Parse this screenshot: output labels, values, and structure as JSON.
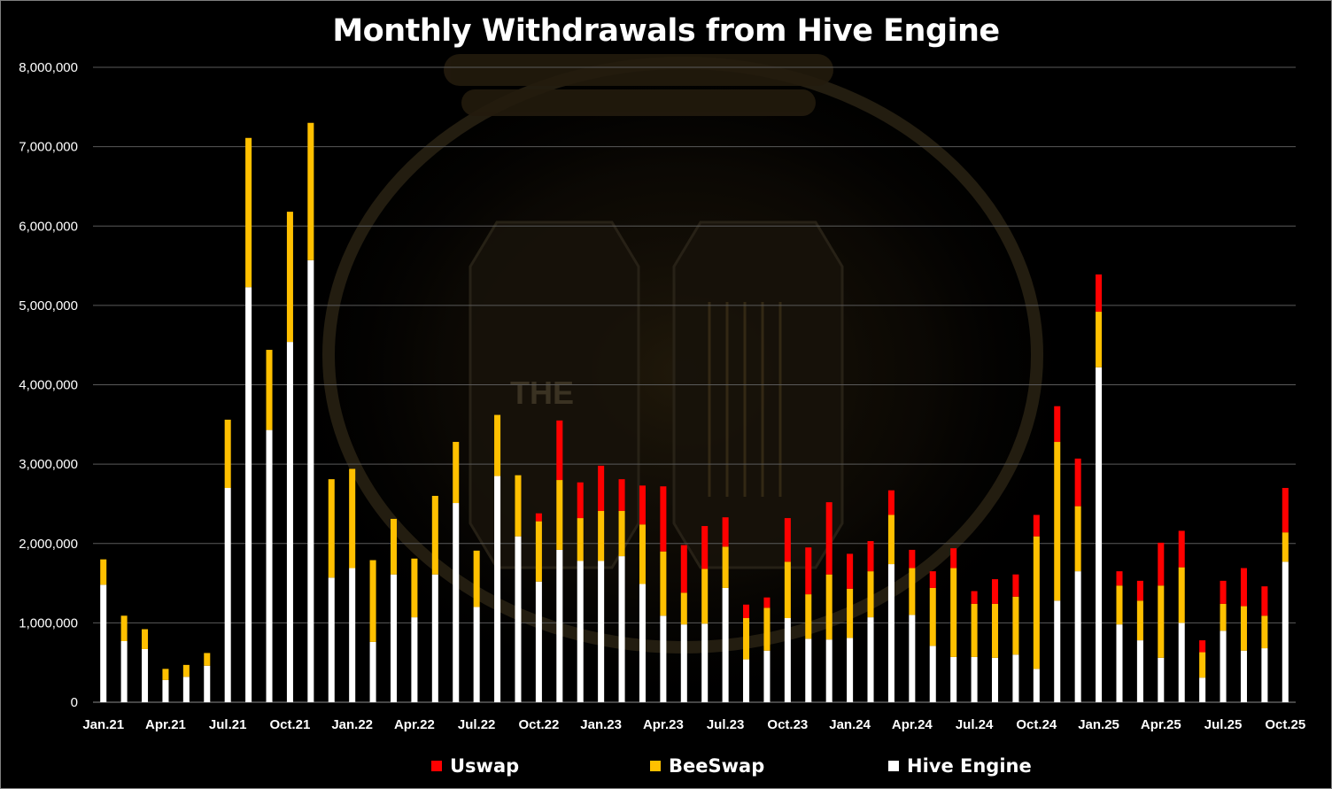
{
  "chart_data": {
    "type": "bar",
    "stacked": true,
    "title": "Monthly Withdrawals from Hive Engine",
    "xlabel": "",
    "ylabel": "",
    "ylim": [
      0,
      8000000
    ],
    "y_ticks": [
      "0",
      "1,000,000",
      "2,000,000",
      "3,000,000",
      "4,000,000",
      "5,000,000",
      "6,000,000",
      "7,000,000",
      "8,000,000"
    ],
    "y_tick_values": [
      0,
      1000000,
      2000000,
      3000000,
      4000000,
      5000000,
      6000000,
      7000000,
      8000000
    ],
    "grid": true,
    "legend_position": "bottom",
    "categories": [
      "Jan.21",
      "Feb.21",
      "Mar.21",
      "Apr.21",
      "May.21",
      "Jun.21",
      "Jul.21",
      "Aug.21",
      "Sep.21",
      "Oct.21",
      "Nov.21",
      "Dec.21",
      "Jan.22",
      "Feb.22",
      "Mar.22",
      "Apr.22",
      "May.22",
      "Jun.22",
      "Jul.22",
      "Aug.22",
      "Sep.22",
      "Oct.22",
      "Nov.22",
      "Dec.22",
      "Jan.23",
      "Feb.23",
      "Mar.23",
      "Apr.23",
      "May.23",
      "Jun.23",
      "Jul.23",
      "Aug.23",
      "Sep.23",
      "Oct.23",
      "Nov.23",
      "Dec.23",
      "Jan.24",
      "Feb.24",
      "Mar.24",
      "Apr.24",
      "May.24",
      "Jun.24",
      "Jul.24",
      "Aug.24",
      "Sep.24",
      "Oct.24",
      "Nov.24",
      "Dec.24",
      "Jan.25",
      "Feb.25",
      "Mar.25",
      "Apr.25",
      "May.25",
      "Jun.25",
      "Jul.25",
      "Aug.25",
      "Sep.25",
      "Oct.25"
    ],
    "x_tick_labels": [
      "Jan.21",
      "",
      "",
      "Apr.21",
      "",
      "",
      "Jul.21",
      "",
      "",
      "Oct.21",
      "",
      "",
      "Jan.22",
      "",
      "",
      "Apr.22",
      "",
      "",
      "Jul.22",
      "",
      "",
      "Oct.22",
      "",
      "",
      "Jan.23",
      "",
      "",
      "Apr.23",
      "",
      "",
      "Jul.23",
      "",
      "",
      "Oct.23",
      "",
      "",
      "Jan.24",
      "",
      "",
      "Apr.24",
      "",
      "",
      "Jul.24",
      "",
      "",
      "Oct.24",
      "",
      "",
      "Jan.25",
      "",
      "",
      "Apr.25",
      "",
      "",
      "Jul.25",
      "",
      "",
      "Oct.25"
    ],
    "series": [
      {
        "name": "Hive Engine",
        "color": "#ffffff",
        "values": [
          1480000,
          770000,
          670000,
          280000,
          320000,
          460000,
          2700000,
          5230000,
          3430000,
          4540000,
          5570000,
          1570000,
          1690000,
          760000,
          1610000,
          1070000,
          1610000,
          2510000,
          1200000,
          2850000,
          2090000,
          1520000,
          1920000,
          1780000,
          1780000,
          1840000,
          1490000,
          1090000,
          980000,
          990000,
          1440000,
          540000,
          650000,
          1060000,
          800000,
          790000,
          810000,
          1070000,
          1740000,
          1100000,
          710000,
          570000,
          570000,
          560000,
          600000,
          420000,
          1280000,
          1650000,
          4220000,
          980000,
          780000,
          560000,
          1000000,
          310000,
          900000,
          650000,
          680000,
          1770000
        ]
      },
      {
        "name": "BeeSwap",
        "color": "#ffc000",
        "values": [
          320000,
          320000,
          250000,
          140000,
          150000,
          160000,
          860000,
          1880000,
          1010000,
          1640000,
          1730000,
          1240000,
          1250000,
          1030000,
          700000,
          740000,
          990000,
          770000,
          710000,
          770000,
          770000,
          760000,
          880000,
          540000,
          630000,
          570000,
          750000,
          810000,
          400000,
          690000,
          520000,
          520000,
          540000,
          710000,
          560000,
          820000,
          620000,
          580000,
          620000,
          590000,
          730000,
          1120000,
          670000,
          680000,
          730000,
          1670000,
          2000000,
          820000,
          700000,
          490000,
          500000,
          910000,
          700000,
          320000,
          340000,
          560000,
          410000,
          370000
        ]
      },
      {
        "name": "Uswap",
        "color": "#ff0000",
        "values": [
          0,
          0,
          0,
          0,
          0,
          0,
          0,
          0,
          0,
          0,
          0,
          0,
          0,
          0,
          0,
          0,
          0,
          0,
          0,
          0,
          0,
          100000,
          750000,
          450000,
          570000,
          400000,
          490000,
          820000,
          600000,
          540000,
          370000,
          170000,
          130000,
          550000,
          590000,
          910000,
          440000,
          380000,
          310000,
          230000,
          210000,
          250000,
          160000,
          310000,
          280000,
          270000,
          450000,
          600000,
          470000,
          180000,
          250000,
          540000,
          460000,
          150000,
          290000,
          480000,
          370000,
          560000
        ]
      }
    ]
  },
  "legend": {
    "uswap_label": "Uswap",
    "beeswap_label": "BeeSwap",
    "hive_engine_label": "Hive Engine",
    "uswap_color": "#ff0000",
    "beeswap_color": "#ffc000",
    "hive_engine_color": "#ffffff"
  }
}
